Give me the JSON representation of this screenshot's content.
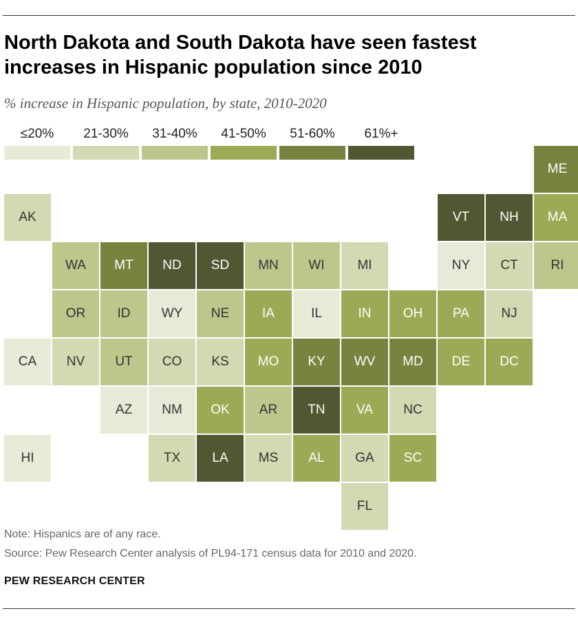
{
  "title": "North Dakota and South Dakota have seen fastest increases in Hispanic population since 2010",
  "subtitle": "% increase in Hispanic population, by state, 2010-2020",
  "legend": [
    {
      "label": "≤20%",
      "color": "#e8ead8"
    },
    {
      "label": "21-30%",
      "color": "#d3d9b3"
    },
    {
      "label": "31-40%",
      "color": "#bcc78c"
    },
    {
      "label": "41-50%",
      "color": "#9bab55"
    },
    {
      "label": "51-60%",
      "color": "#76843f"
    },
    {
      "label": "61%+",
      "color": "#4f5832"
    }
  ],
  "note": "Note: Hispanics are of any race.",
  "source": "Source: Pew Research Center analysis of PL94-171 census data for 2010 and 2020.",
  "brand": "PEW RESEARCH CENTER",
  "chart_data": {
    "type": "heatmap",
    "title": "North Dakota and South Dakota have seen fastest increases in Hispanic population since 2010",
    "subtitle": "% increase in Hispanic population, by state, 2010-2020",
    "bins": [
      "≤20%",
      "21-30%",
      "31-40%",
      "41-50%",
      "51-60%",
      "61%+"
    ],
    "states": [
      {
        "abbr": "ME",
        "bin": 4,
        "row": 0,
        "col": 11
      },
      {
        "abbr": "AK",
        "bin": 1,
        "row": 1,
        "col": 0
      },
      {
        "abbr": "VT",
        "bin": 5,
        "row": 1,
        "col": 9
      },
      {
        "abbr": "NH",
        "bin": 5,
        "row": 1,
        "col": 10
      },
      {
        "abbr": "MA",
        "bin": 3,
        "row": 1,
        "col": 11
      },
      {
        "abbr": "WA",
        "bin": 2,
        "row": 2,
        "col": 1
      },
      {
        "abbr": "MT",
        "bin": 4,
        "row": 2,
        "col": 2
      },
      {
        "abbr": "ND",
        "bin": 5,
        "row": 2,
        "col": 3
      },
      {
        "abbr": "SD",
        "bin": 5,
        "row": 2,
        "col": 4
      },
      {
        "abbr": "MN",
        "bin": 2,
        "row": 2,
        "col": 5
      },
      {
        "abbr": "WI",
        "bin": 2,
        "row": 2,
        "col": 6
      },
      {
        "abbr": "MI",
        "bin": 1,
        "row": 2,
        "col": 7
      },
      {
        "abbr": "NY",
        "bin": 0,
        "row": 2,
        "col": 9
      },
      {
        "abbr": "CT",
        "bin": 1,
        "row": 2,
        "col": 10
      },
      {
        "abbr": "RI",
        "bin": 2,
        "row": 2,
        "col": 11
      },
      {
        "abbr": "OR",
        "bin": 2,
        "row": 3,
        "col": 1
      },
      {
        "abbr": "ID",
        "bin": 2,
        "row": 3,
        "col": 2
      },
      {
        "abbr": "WY",
        "bin": 0,
        "row": 3,
        "col": 3
      },
      {
        "abbr": "NE",
        "bin": 2,
        "row": 3,
        "col": 4
      },
      {
        "abbr": "IA",
        "bin": 3,
        "row": 3,
        "col": 5
      },
      {
        "abbr": "IL",
        "bin": 0,
        "row": 3,
        "col": 6
      },
      {
        "abbr": "IN",
        "bin": 3,
        "row": 3,
        "col": 7
      },
      {
        "abbr": "OH",
        "bin": 3,
        "row": 3,
        "col": 8
      },
      {
        "abbr": "PA",
        "bin": 3,
        "row": 3,
        "col": 9
      },
      {
        "abbr": "NJ",
        "bin": 1,
        "row": 3,
        "col": 10
      },
      {
        "abbr": "CA",
        "bin": 0,
        "row": 4,
        "col": 0
      },
      {
        "abbr": "NV",
        "bin": 1,
        "row": 4,
        "col": 1
      },
      {
        "abbr": "UT",
        "bin": 2,
        "row": 4,
        "col": 2
      },
      {
        "abbr": "CO",
        "bin": 1,
        "row": 4,
        "col": 3
      },
      {
        "abbr": "KS",
        "bin": 1,
        "row": 4,
        "col": 4
      },
      {
        "abbr": "MO",
        "bin": 3,
        "row": 4,
        "col": 5
      },
      {
        "abbr": "KY",
        "bin": 4,
        "row": 4,
        "col": 6
      },
      {
        "abbr": "WV",
        "bin": 4,
        "row": 4,
        "col": 7
      },
      {
        "abbr": "MD",
        "bin": 4,
        "row": 4,
        "col": 8
      },
      {
        "abbr": "DE",
        "bin": 3,
        "row": 4,
        "col": 9
      },
      {
        "abbr": "DC",
        "bin": 3,
        "row": 4,
        "col": 10
      },
      {
        "abbr": "AZ",
        "bin": 0,
        "row": 5,
        "col": 2
      },
      {
        "abbr": "NM",
        "bin": 0,
        "row": 5,
        "col": 3
      },
      {
        "abbr": "OK",
        "bin": 3,
        "row": 5,
        "col": 4
      },
      {
        "abbr": "AR",
        "bin": 2,
        "row": 5,
        "col": 5
      },
      {
        "abbr": "TN",
        "bin": 5,
        "row": 5,
        "col": 6
      },
      {
        "abbr": "VA",
        "bin": 3,
        "row": 5,
        "col": 7
      },
      {
        "abbr": "NC",
        "bin": 1,
        "row": 5,
        "col": 8
      },
      {
        "abbr": "HI",
        "bin": 0,
        "row": 6,
        "col": 0
      },
      {
        "abbr": "TX",
        "bin": 1,
        "row": 6,
        "col": 3
      },
      {
        "abbr": "LA",
        "bin": 5,
        "row": 6,
        "col": 4
      },
      {
        "abbr": "MS",
        "bin": 1,
        "row": 6,
        "col": 5
      },
      {
        "abbr": "AL",
        "bin": 3,
        "row": 6,
        "col": 6
      },
      {
        "abbr": "GA",
        "bin": 1,
        "row": 6,
        "col": 7
      },
      {
        "abbr": "SC",
        "bin": 3,
        "row": 6,
        "col": 8
      },
      {
        "abbr": "FL",
        "bin": 1,
        "row": 7,
        "col": 7
      }
    ]
  }
}
